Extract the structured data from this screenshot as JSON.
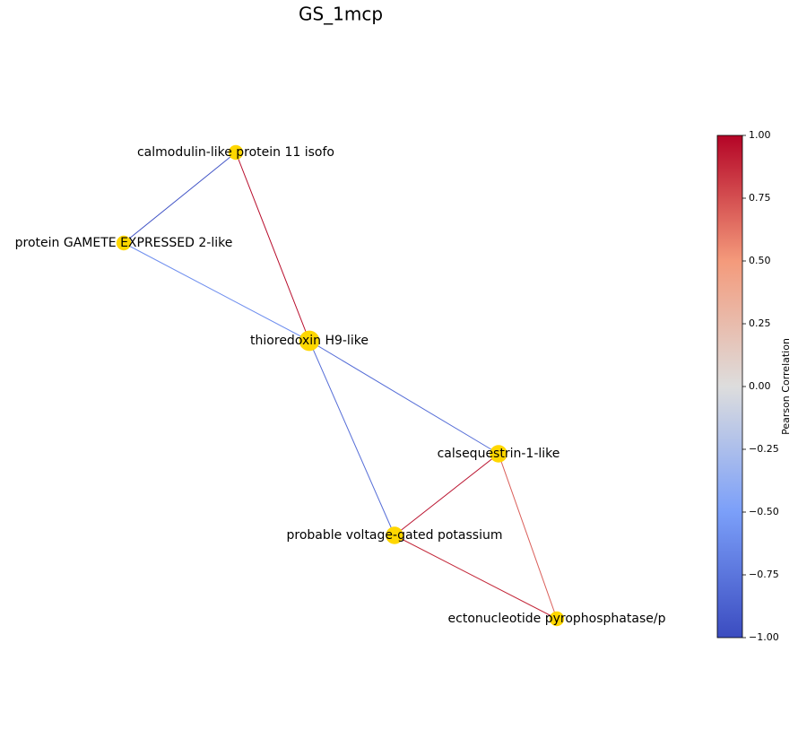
{
  "title": "GS_1mcp",
  "nodes": [
    {
      "label": "calmodulin-like protein 11 isofo"
    },
    {
      "label": "protein GAMETE EXPRESSED 2-like"
    },
    {
      "label": "thioredoxin H9-like"
    },
    {
      "label": "calsequestrin-1-like"
    },
    {
      "label": "probable voltage-gated potassium"
    },
    {
      "label": "ectonucleotide pyrophosphatase/p"
    }
  ],
  "edges": [
    {
      "source": 0,
      "target": 1,
      "correlation": -0.95
    },
    {
      "source": 0,
      "target": 2,
      "correlation": 0.98
    },
    {
      "source": 1,
      "target": 2,
      "correlation": -0.6
    },
    {
      "source": 2,
      "target": 3,
      "correlation": -0.8
    },
    {
      "source": 2,
      "target": 4,
      "correlation": -0.8
    },
    {
      "source": 3,
      "target": 4,
      "correlation": 0.95
    },
    {
      "source": 3,
      "target": 5,
      "correlation": 0.7
    },
    {
      "source": 4,
      "target": 5,
      "correlation": 0.88
    }
  ],
  "colorbar": {
    "label": "Pearson Correlation",
    "lim": [
      -1,
      1
    ],
    "ticks": [
      {
        "value": -1,
        "label": "−1.00"
      },
      {
        "value": -0.75,
        "label": "−0.75"
      },
      {
        "value": -0.5,
        "label": "−0.50"
      },
      {
        "value": -0.25,
        "label": "−0.25"
      },
      {
        "value": 0,
        "label": "0.00"
      },
      {
        "value": 0.25,
        "label": "0.25"
      },
      {
        "value": 0.5,
        "label": "0.50"
      },
      {
        "value": 0.75,
        "label": "0.75"
      },
      {
        "value": 1,
        "label": "1.00"
      }
    ]
  }
}
